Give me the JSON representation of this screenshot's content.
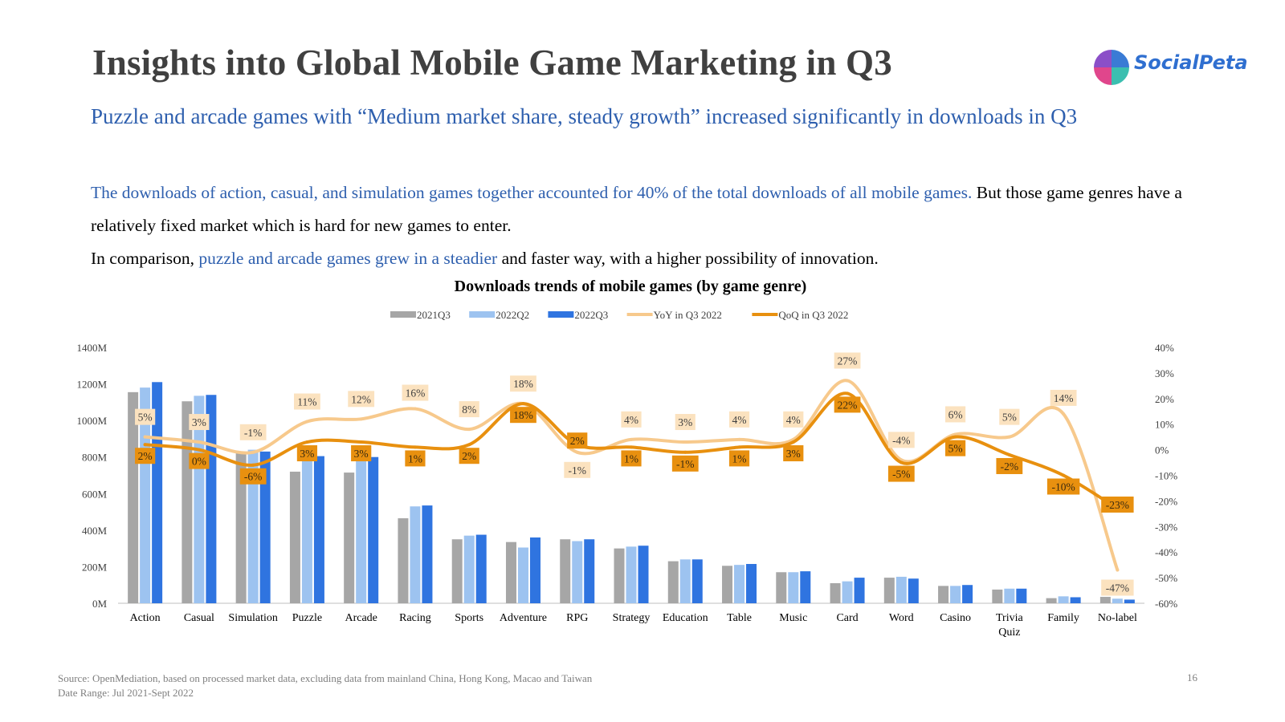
{
  "header": {
    "title": "Insights into Global Mobile Game Marketing in Q3",
    "logo_text": "SocialPeta",
    "subtitle": "Puzzle and arcade games with “Medium market share, steady growth” increased significantly in downloads in Q3"
  },
  "body": {
    "p1_highlight": "The downloads of action, casual, and simulation games together accounted for 40% of the total downloads of all mobile games.",
    "p1_rest": " But those game genres have a relatively fixed market which is hard for new games to enter.",
    "p2_start": "In comparison, ",
    "p2_highlight": "puzzle and arcade games grew in a steadier",
    "p2_rest": " and faster way, with a higher possibility of innovation."
  },
  "footer": {
    "source": "Source: OpenMediation, based on processed market data, excluding data from mainland China, Hong Kong, Macao and Taiwan",
    "date_range": "Date Range: Jul 2021-Sept 2022",
    "page_number": "16"
  },
  "chart_data": {
    "type": "bar",
    "title": "Downloads trends of mobile games (by game genre)",
    "categories": [
      "Action",
      "Casual",
      "Simulation",
      "Puzzle",
      "Arcade",
      "Racing",
      "Sports",
      "Adventure",
      "RPG",
      "Strategy",
      "Education",
      "Table",
      "Music",
      "Card",
      "Word",
      "Casino",
      "Trivia Quiz",
      "Family",
      "No-label"
    ],
    "category_lines": [
      [
        "Action"
      ],
      [
        "Casual"
      ],
      [
        "Simulation"
      ],
      [
        "Puzzle"
      ],
      [
        "Arcade"
      ],
      [
        "Racing"
      ],
      [
        "Sports"
      ],
      [
        "Adventure"
      ],
      [
        "RPG"
      ],
      [
        "Strategy"
      ],
      [
        "Education"
      ],
      [
        "Table"
      ],
      [
        "Music"
      ],
      [
        "Card"
      ],
      [
        "Word"
      ],
      [
        "Casino"
      ],
      [
        "Trivia",
        "Quiz"
      ],
      [
        "Family"
      ],
      [
        "No-label"
      ]
    ],
    "y_left": {
      "ticks": [
        "0M",
        "200M",
        "400M",
        "600M",
        "800M",
        "1000M",
        "1200M",
        "1400M"
      ],
      "range": [
        0,
        1400
      ]
    },
    "y_right": {
      "ticks": [
        "-60%",
        "-50%",
        "-40%",
        "-30%",
        "-20%",
        "-10%",
        "0%",
        "10%",
        "20%",
        "30%",
        "40%"
      ],
      "range": [
        -60,
        40
      ]
    },
    "series": [
      {
        "name": "2021Q3",
        "kind": "bar",
        "color": "#a6a6a6",
        "values": [
          1155,
          1105,
          830,
          720,
          715,
          465,
          350,
          335,
          350,
          300,
          230,
          205,
          170,
          110,
          140,
          95,
          75,
          28,
          35
        ]
      },
      {
        "name": "2022Q2",
        "kind": "bar",
        "color": "#9dc3f0",
        "values": [
          1180,
          1135,
          840,
          785,
          790,
          530,
          370,
          305,
          340,
          310,
          240,
          210,
          170,
          120,
          145,
          95,
          80,
          38,
          25
        ]
      },
      {
        "name": "2022Q3",
        "kind": "bar",
        "color": "#2f74e0",
        "values": [
          1210,
          1140,
          830,
          805,
          800,
          535,
          375,
          360,
          350,
          315,
          240,
          215,
          175,
          140,
          135,
          100,
          80,
          33,
          20
        ]
      },
      {
        "name": "YoY in Q3 2022",
        "kind": "line",
        "axis": "right",
        "color": "#f7c98c",
        "values": [
          5,
          3,
          -1,
          11,
          12,
          16,
          8,
          18,
          -1,
          4,
          3,
          4,
          4,
          27,
          -4,
          6,
          5,
          14,
          -47
        ],
        "labels": [
          "5%",
          "3%",
          "-1%",
          "11%",
          "12%",
          "16%",
          "8%",
          "18%",
          "-1%",
          "4%",
          "3%",
          "4%",
          "4%",
          "27%",
          "-4%",
          "6%",
          "5%",
          "14%",
          "-47%"
        ]
      },
      {
        "name": "QoQ in Q3 2022",
        "kind": "line",
        "axis": "right",
        "color": "#e8900f",
        "values": [
          2,
          0,
          -6,
          3,
          3,
          1,
          2,
          18,
          2,
          1,
          -1,
          1,
          3,
          22,
          -5,
          5,
          -2,
          -10,
          -23
        ],
        "labels": [
          "2%",
          "0%",
          "-6%",
          "3%",
          "3%",
          "1%",
          "2%",
          "18%",
          "2%",
          "1%",
          "-1%",
          "1%",
          "3%",
          "22%",
          "-5%",
          "5%",
          "-2%",
          "-10%",
          "-23%"
        ]
      }
    ],
    "legend_position": "top",
    "grid": false
  }
}
